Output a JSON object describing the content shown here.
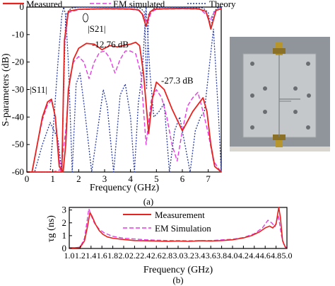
{
  "figure": {
    "panel_a_label": "(a)",
    "panel_b_label": "(b)"
  },
  "colors": {
    "measured": "#e8231f",
    "em": "#e23ce0",
    "theory": "#2438a8",
    "photo_bg": "#9aa0a5",
    "board": "#c8cbcd"
  },
  "photo": {
    "description_icon": "pcb-filter-photo-icon"
  },
  "chart_data": [
    {
      "type": "line",
      "xlabel": "Frequency (GHz)",
      "ylabel": "S-parameters (dB)",
      "xlim": [
        0,
        7.5
      ],
      "ylim": [
        -60,
        0
      ],
      "xticks": [
        0,
        1,
        2,
        3,
        4,
        5,
        6,
        7
      ],
      "yticks": [
        0,
        -10,
        -20,
        -30,
        -40,
        -50,
        -60
      ],
      "xtick_labels": [
        "0",
        "1",
        "2",
        "3",
        "4",
        "5",
        "6",
        "7"
      ],
      "ytick_labels": [
        "0",
        "-10",
        "-20",
        "-30",
        "-40",
        "-50",
        "-60"
      ],
      "legend": [
        "Measured",
        "EM simulated",
        "Theory"
      ],
      "legend_position": "top",
      "annotations": {
        "s21": "|S21|",
        "s11": "|S11|",
        "a1": "-12.76 dB",
        "a2": "-27.3 dB"
      },
      "series": [
        {
          "name": "Measured",
          "role": "S21",
          "x": [
            0,
            1.0,
            1.35,
            1.45,
            1.6,
            2.0,
            2.5,
            3.0,
            3.5,
            4.0,
            4.3,
            4.45,
            4.6,
            4.75,
            4.9,
            5.3,
            6.0,
            6.6,
            6.9,
            7.0,
            7.1,
            7.3,
            7.5
          ],
          "y": [
            -60,
            -60,
            -60,
            -12,
            -1.5,
            -0.8,
            -0.7,
            -0.6,
            -0.6,
            -0.7,
            -1.0,
            -2.5,
            -7,
            -1.8,
            -0.8,
            -0.6,
            -0.5,
            -0.6,
            -1.5,
            -4,
            -8,
            -1.2,
            -0.6
          ]
        },
        {
          "name": "Measured",
          "role": "S11",
          "x": [
            0,
            0.2,
            0.4,
            0.6,
            0.8,
            0.95,
            1.1,
            1.25,
            1.4,
            1.5,
            1.6,
            1.8,
            2.0,
            2.3,
            2.6,
            2.9,
            3.2,
            3.5,
            3.8,
            4.0,
            4.2,
            4.35,
            4.5,
            4.7,
            4.85,
            5.0,
            5.3,
            5.6,
            6.0,
            6.4,
            6.8,
            6.95,
            7.1,
            7.25,
            7.5
          ],
          "y": [
            -60,
            -60,
            -50,
            -40,
            -34.5,
            -33.5,
            -40,
            -58,
            -60,
            -50,
            -30,
            -19,
            -15,
            -13.2,
            -13.5,
            -15.5,
            -14,
            -14.5,
            -13.8,
            -13.5,
            -12.8,
            -14,
            -24,
            -46,
            -33,
            -27.3,
            -30,
            -37,
            -45,
            -38,
            -33,
            -38,
            -50,
            -58,
            -60
          ]
        },
        {
          "name": "EM simulated",
          "role": "S21",
          "x": [
            0,
            1.0,
            1.35,
            1.45,
            1.6,
            2.0,
            3.0,
            4.0,
            4.35,
            4.5,
            4.65,
            4.8,
            5.0,
            6.0,
            6.7,
            6.95,
            7.05,
            7.15,
            7.3,
            7.5
          ],
          "y": [
            -60,
            -60,
            -59,
            -14,
            -2,
            -0.9,
            -0.7,
            -0.8,
            -1.2,
            -3,
            -6,
            -1.8,
            -0.8,
            -0.6,
            -0.8,
            -3,
            -6,
            -3,
            -1,
            -0.6
          ]
        },
        {
          "name": "EM simulated",
          "role": "S11",
          "x": [
            0,
            0.2,
            0.4,
            0.6,
            0.8,
            0.95,
            1.1,
            1.3,
            1.5,
            1.65,
            1.8,
            2.0,
            2.2,
            2.4,
            2.6,
            2.8,
            3.0,
            3.2,
            3.4,
            3.6,
            3.8,
            4.0,
            4.2,
            4.4,
            4.6,
            4.8,
            5.0,
            5.2,
            5.4,
            5.6,
            5.8,
            6.0,
            6.2,
            6.4,
            6.6,
            6.8,
            7.0,
            7.2,
            7.5
          ],
          "y": [
            -60,
            -60,
            -50,
            -41,
            -35.5,
            -34,
            -40,
            -60,
            -45,
            -26,
            -20,
            -18,
            -20,
            -26,
            -20,
            -16.5,
            -16,
            -18.5,
            -24,
            -19,
            -16,
            -16,
            -17,
            -24,
            -50,
            -34,
            -30,
            -33,
            -40,
            -50,
            -56,
            -45,
            -36,
            -33,
            -31,
            -38,
            -46,
            -56,
            -60
          ]
        },
        {
          "name": "Theory",
          "role": "S21",
          "x": [
            0,
            0.3,
            0.6,
            0.9,
            1.2,
            1.35,
            1.42,
            1.5,
            1.7,
            2.0,
            3.0,
            4.0,
            4.4,
            4.55,
            4.62,
            4.7,
            4.9,
            5.2,
            6.0,
            6.8,
            7.0,
            7.1,
            7.2,
            7.35,
            7.5
          ],
          "y": [
            -60,
            -60,
            -50,
            -42,
            -48,
            -60,
            -30,
            -3,
            -0.4,
            -0.1,
            -0.1,
            -0.1,
            -0.4,
            -2,
            -30,
            -2.5,
            -0.4,
            -0.1,
            -0.1,
            -0.3,
            -2,
            -8,
            -2,
            -0.3,
            -0.1
          ]
        },
        {
          "name": "Theory",
          "role": "S11",
          "x": [
            0,
            0.3,
            0.6,
            0.9,
            1.2,
            1.35,
            1.42,
            1.5,
            1.6,
            1.75,
            1.9,
            2.05,
            2.2,
            2.5,
            2.8,
            2.95,
            3.1,
            3.35,
            3.6,
            3.8,
            4.0,
            4.15,
            4.3,
            4.45,
            4.55,
            4.6,
            4.65,
            4.75,
            4.9,
            5.1,
            5.3,
            5.5,
            5.7,
            5.9,
            6.1,
            6.3,
            6.5,
            6.7,
            6.85,
            7.0,
            7.2,
            7.4,
            7.5
          ],
          "y": [
            -60,
            -60,
            -60,
            -60,
            -20,
            -3,
            0,
            -3,
            -20,
            -60,
            -28,
            -24,
            -35,
            -60,
            -40,
            -30,
            -36,
            -60,
            -32,
            -28,
            -40,
            -60,
            -35,
            -24,
            -8,
            0,
            -8,
            -24,
            -40,
            -38,
            -35,
            -60,
            -45,
            -40,
            -50,
            -60,
            -45,
            -40,
            -38,
            -25,
            -8,
            -40,
            -60
          ]
        }
      ]
    },
    {
      "type": "line",
      "xlabel": "Frequency (GHz)",
      "ylabel": "τg (ns)",
      "xlim": [
        1.0,
        5.0
      ],
      "ylim": [
        0,
        3.2
      ],
      "xticks": [
        1.0,
        1.2,
        1.4,
        1.6,
        1.8,
        2.0,
        2.2,
        2.4,
        2.6,
        2.8,
        3.0,
        3.2,
        3.4,
        3.6,
        3.8,
        4.0,
        4.2,
        4.4,
        4.6,
        4.8,
        5.0
      ],
      "yticks": [
        0,
        1,
        2,
        3
      ],
      "xtick_labels": [
        "1.0",
        "1.2",
        "1.4",
        "1.6",
        "1.8",
        "2.0",
        "2.2",
        "2.4",
        "2.6",
        "2.8",
        "3.0",
        "3.2",
        "3.4",
        "3.6",
        "3.8",
        "4.0",
        "4.2",
        "4.4",
        "4.6",
        "4.8",
        "5.0"
      ],
      "ytick_labels": [
        "0",
        "1",
        "2",
        "3"
      ],
      "legend": [
        "Measurement",
        "EM Simulation"
      ],
      "legend_position": "top-right",
      "series": [
        {
          "name": "Measurement",
          "x": [
            1.0,
            1.1,
            1.2,
            1.28,
            1.33,
            1.38,
            1.42,
            1.48,
            1.55,
            1.62,
            1.7,
            1.8,
            1.9,
            2.0,
            2.2,
            2.4,
            2.6,
            2.8,
            3.0,
            3.2,
            3.4,
            3.6,
            3.8,
            4.0,
            4.2,
            4.35,
            4.5,
            4.6,
            4.68,
            4.74,
            4.8,
            4.85,
            4.88,
            4.92,
            4.97,
            5.0
          ],
          "y": [
            0.05,
            0.05,
            0.08,
            0.6,
            1.6,
            2.8,
            2.5,
            1.9,
            1.4,
            1.1,
            0.9,
            0.8,
            0.75,
            0.7,
            0.62,
            0.6,
            0.58,
            0.56,
            0.58,
            0.55,
            0.6,
            0.58,
            0.62,
            0.68,
            0.82,
            1.0,
            1.3,
            1.6,
            1.75,
            1.6,
            1.9,
            3.3,
            2.4,
            0.6,
            0.1,
            0.05
          ]
        },
        {
          "name": "EM Simulation",
          "x": [
            1.0,
            1.1,
            1.2,
            1.28,
            1.33,
            1.36,
            1.4,
            1.46,
            1.55,
            1.65,
            1.8,
            2.0,
            2.4,
            2.8,
            3.2,
            3.6,
            4.0,
            4.2,
            4.4,
            4.55,
            4.65,
            4.72,
            4.78,
            4.84,
            4.9,
            4.95,
            5.0
          ],
          "y": [
            0.05,
            0.05,
            0.1,
            0.8,
            2.2,
            3.1,
            2.6,
            2.0,
            1.5,
            1.2,
            0.95,
            0.8,
            0.68,
            0.62,
            0.6,
            0.62,
            0.72,
            0.85,
            1.15,
            1.6,
            2.2,
            2.0,
            1.7,
            2.6,
            1.0,
            0.2,
            0.05
          ]
        }
      ]
    }
  ]
}
